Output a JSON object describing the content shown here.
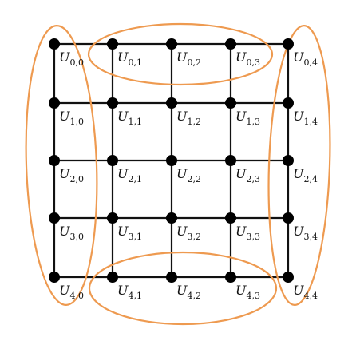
{
  "diagram": {
    "label_prefix": "U",
    "rows": [
      {
        "row": 0,
        "labels": [
          "0,0",
          "0,1",
          "0,2",
          "0,3",
          "0,4"
        ]
      },
      {
        "row": 1,
        "labels": [
          "1,0",
          "1,1",
          "1,2",
          "1,3",
          "1,4"
        ]
      },
      {
        "row": 2,
        "labels": [
          "2,0",
          "2,1",
          "2,2",
          "2,3",
          "2,4"
        ]
      },
      {
        "row": 3,
        "labels": [
          "3,0",
          "3,1",
          "3,2",
          "3,3",
          "3,4"
        ]
      },
      {
        "row": 4,
        "labels": [
          "4,0",
          "4,1",
          "4,2",
          "4,3",
          "4,4"
        ]
      }
    ],
    "groups": [
      {
        "name": "left-column-group",
        "nodes": [
          "0,0",
          "1,0",
          "2,0",
          "3,0",
          "4,0"
        ]
      },
      {
        "name": "right-column-group",
        "nodes": [
          "0,4",
          "1,4",
          "2,4",
          "3,4",
          "4,4"
        ]
      },
      {
        "name": "top-row-group",
        "nodes": [
          "0,1",
          "0,2",
          "0,3"
        ]
      },
      {
        "name": "bottom-row-group",
        "nodes": [
          "4,1",
          "4,2",
          "4,3"
        ]
      }
    ],
    "colors": {
      "grid": "#111111",
      "node": "#000000",
      "group_outline": "#EE9A50",
      "background": "#FFFFFF"
    }
  }
}
